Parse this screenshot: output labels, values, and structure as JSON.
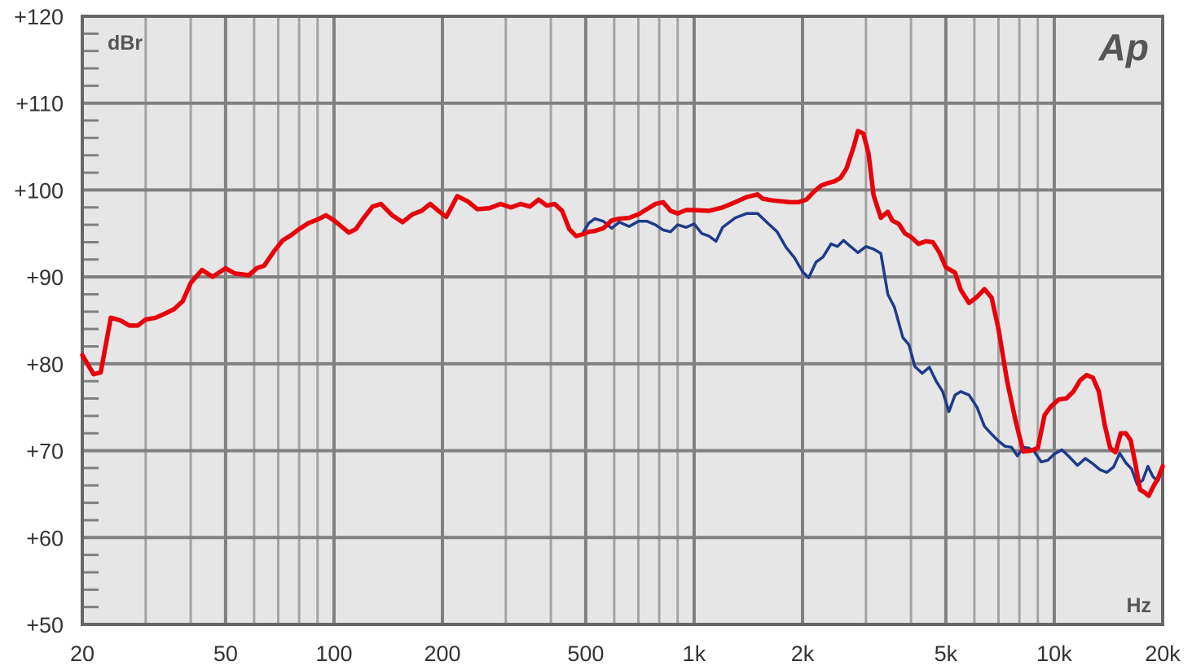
{
  "chart_data": {
    "type": "line",
    "title": "",
    "xlabel": "Hz",
    "ylabel": "dBr",
    "x_scale": "log",
    "xlim": [
      20,
      20000
    ],
    "ylim": [
      50,
      120
    ],
    "x_ticks": [
      {
        "value": 20,
        "label": "20"
      },
      {
        "value": 50,
        "label": "50"
      },
      {
        "value": 100,
        "label": "100"
      },
      {
        "value": 200,
        "label": "200"
      },
      {
        "value": 500,
        "label": "500"
      },
      {
        "value": 1000,
        "label": "1k"
      },
      {
        "value": 2000,
        "label": "2k"
      },
      {
        "value": 5000,
        "label": "5k"
      },
      {
        "value": 10000,
        "label": "10k"
      },
      {
        "value": 20000,
        "label": "20k"
      }
    ],
    "y_ticks": [
      {
        "value": 120,
        "label": "+120"
      },
      {
        "value": 110,
        "label": "+110"
      },
      {
        "value": 100,
        "label": "+100"
      },
      {
        "value": 90,
        "label": "+90"
      },
      {
        "value": 80,
        "label": "+80"
      },
      {
        "value": 70,
        "label": "+70"
      },
      {
        "value": 60,
        "label": "+60"
      },
      {
        "value": 50,
        "label": "+50"
      }
    ],
    "grid": true,
    "logo": "Ap",
    "series": [
      {
        "color": "#e8000b",
        "points": [
          [
            20,
            81
          ],
          [
            21.5,
            78.8
          ],
          [
            22.5,
            79
          ],
          [
            24,
            85.3
          ],
          [
            25.5,
            85
          ],
          [
            27,
            84.4
          ],
          [
            28.5,
            84.4
          ],
          [
            30,
            85.1
          ],
          [
            32,
            85.3
          ],
          [
            34,
            85.8
          ],
          [
            36,
            86.3
          ],
          [
            38,
            87.2
          ],
          [
            40,
            89.3
          ],
          [
            43,
            90.8
          ],
          [
            46,
            90
          ],
          [
            50,
            91
          ],
          [
            53,
            90.4
          ],
          [
            58,
            90.2
          ],
          [
            61,
            91
          ],
          [
            64,
            91.3
          ],
          [
            68,
            92.9
          ],
          [
            72,
            94.2
          ],
          [
            76,
            94.8
          ],
          [
            80,
            95.5
          ],
          [
            85,
            96.2
          ],
          [
            90,
            96.6
          ],
          [
            95,
            97.1
          ],
          [
            100,
            96.5
          ],
          [
            110,
            95.1
          ],
          [
            115,
            95.5
          ],
          [
            120,
            96.6
          ],
          [
            128,
            98.1
          ],
          [
            135,
            98.4
          ],
          [
            145,
            97.1
          ],
          [
            155,
            96.3
          ],
          [
            165,
            97.2
          ],
          [
            175,
            97.6
          ],
          [
            185,
            98.4
          ],
          [
            195,
            97.6
          ],
          [
            205,
            96.9
          ],
          [
            220,
            99.3
          ],
          [
            235,
            98.7
          ],
          [
            250,
            97.8
          ],
          [
            270,
            97.9
          ],
          [
            290,
            98.4
          ],
          [
            310,
            98
          ],
          [
            330,
            98.4
          ],
          [
            350,
            98.1
          ],
          [
            370,
            98.9
          ],
          [
            390,
            98.2
          ],
          [
            410,
            98.4
          ],
          [
            430,
            97.6
          ],
          [
            450,
            95.5
          ],
          [
            470,
            94.7
          ],
          [
            490,
            94.9
          ],
          [
            510,
            95.2
          ],
          [
            530,
            95.3
          ],
          [
            560,
            95.6
          ],
          [
            590,
            96.5
          ],
          [
            620,
            96.7
          ],
          [
            660,
            96.8
          ],
          [
            700,
            97.2
          ],
          [
            740,
            97.8
          ],
          [
            780,
            98.4
          ],
          [
            820,
            98.6
          ],
          [
            860,
            97.6
          ],
          [
            900,
            97.3
          ],
          [
            950,
            97.7
          ],
          [
            1000,
            97.7
          ],
          [
            1100,
            97.6
          ],
          [
            1200,
            98
          ],
          [
            1300,
            98.6
          ],
          [
            1400,
            99.2
          ],
          [
            1500,
            99.5
          ],
          [
            1550,
            99
          ],
          [
            1650,
            98.8
          ],
          [
            1750,
            98.7
          ],
          [
            1850,
            98.6
          ],
          [
            1950,
            98.6
          ],
          [
            2050,
            98.9
          ],
          [
            2150,
            99.8
          ],
          [
            2250,
            100.5
          ],
          [
            2350,
            100.8
          ],
          [
            2450,
            101
          ],
          [
            2550,
            101.4
          ],
          [
            2650,
            102.5
          ],
          [
            2780,
            105.1
          ],
          [
            2850,
            106.8
          ],
          [
            2950,
            106.5
          ],
          [
            3050,
            104.2
          ],
          [
            3150,
            99.4
          ],
          [
            3300,
            96.8
          ],
          [
            3450,
            97.5
          ],
          [
            3550,
            96.5
          ],
          [
            3700,
            96.1
          ],
          [
            3850,
            95
          ],
          [
            4000,
            94.6
          ],
          [
            4200,
            93.8
          ],
          [
            4400,
            94.1
          ],
          [
            4600,
            94
          ],
          [
            4800,
            92.8
          ],
          [
            5000,
            91.1
          ],
          [
            5300,
            90.5
          ],
          [
            5500,
            88.5
          ],
          [
            5800,
            87
          ],
          [
            6100,
            87.7
          ],
          [
            6400,
            88.6
          ],
          [
            6700,
            87.6
          ],
          [
            7000,
            84
          ],
          [
            7400,
            78
          ],
          [
            7800,
            73.5
          ],
          [
            8200,
            69.9
          ],
          [
            8600,
            70
          ],
          [
            9000,
            70.3
          ],
          [
            9400,
            74.1
          ],
          [
            9800,
            75.1
          ],
          [
            10300,
            75.9
          ],
          [
            10800,
            76
          ],
          [
            11300,
            76.8
          ],
          [
            11800,
            78.1
          ],
          [
            12300,
            78.7
          ],
          [
            12800,
            78.4
          ],
          [
            13300,
            76.8
          ],
          [
            13800,
            73
          ],
          [
            14300,
            70.3
          ],
          [
            14800,
            69.8
          ],
          [
            15300,
            72
          ],
          [
            15800,
            72
          ],
          [
            16300,
            71.2
          ],
          [
            16800,
            68.5
          ],
          [
            17300,
            65.5
          ],
          [
            17800,
            65.2
          ],
          [
            18300,
            64.8
          ],
          [
            18800,
            65.8
          ],
          [
            19400,
            66.8
          ],
          [
            20000,
            68.2
          ]
        ]
      },
      {
        "color": "#1e3a8a",
        "points": [
          [
            490,
            95
          ],
          [
            510,
            96.2
          ],
          [
            530,
            96.7
          ],
          [
            560,
            96.4
          ],
          [
            590,
            95.6
          ],
          [
            620,
            96.3
          ],
          [
            660,
            95.8
          ],
          [
            700,
            96.4
          ],
          [
            740,
            96.4
          ],
          [
            780,
            96
          ],
          [
            820,
            95.4
          ],
          [
            860,
            95.2
          ],
          [
            900,
            96
          ],
          [
            950,
            95.7
          ],
          [
            1000,
            96.1
          ],
          [
            1050,
            95
          ],
          [
            1100,
            94.7
          ],
          [
            1150,
            94.1
          ],
          [
            1200,
            95.7
          ],
          [
            1300,
            96.8
          ],
          [
            1400,
            97.3
          ],
          [
            1500,
            97.3
          ],
          [
            1600,
            96.2
          ],
          [
            1700,
            95.2
          ],
          [
            1800,
            93.4
          ],
          [
            1900,
            92.2
          ],
          [
            2000,
            90.6
          ],
          [
            2080,
            89.9
          ],
          [
            2180,
            91.7
          ],
          [
            2280,
            92.3
          ],
          [
            2400,
            93.8
          ],
          [
            2500,
            93.5
          ],
          [
            2600,
            94.2
          ],
          [
            2700,
            93.6
          ],
          [
            2850,
            92.8
          ],
          [
            3000,
            93.5
          ],
          [
            3150,
            93.2
          ],
          [
            3300,
            92.7
          ],
          [
            3450,
            88
          ],
          [
            3600,
            86.5
          ],
          [
            3800,
            83
          ],
          [
            3950,
            82.2
          ],
          [
            4100,
            79.7
          ],
          [
            4300,
            78.9
          ],
          [
            4500,
            79.6
          ],
          [
            4700,
            78
          ],
          [
            4900,
            76.8
          ],
          [
            5100,
            74.5
          ],
          [
            5300,
            76.4
          ],
          [
            5500,
            76.8
          ],
          [
            5800,
            76.4
          ],
          [
            6100,
            75
          ],
          [
            6400,
            72.8
          ],
          [
            6700,
            71.9
          ],
          [
            7000,
            71.1
          ],
          [
            7300,
            70.5
          ],
          [
            7600,
            70.4
          ],
          [
            7900,
            69.4
          ],
          [
            8200,
            70.4
          ],
          [
            8500,
            70.3
          ],
          [
            8800,
            69.9
          ],
          [
            9200,
            68.7
          ],
          [
            9600,
            68.9
          ],
          [
            10000,
            69.6
          ],
          [
            10500,
            70.1
          ],
          [
            11000,
            69.3
          ],
          [
            11600,
            68.3
          ],
          [
            12200,
            69.1
          ],
          [
            12800,
            68.5
          ],
          [
            13400,
            67.8
          ],
          [
            14000,
            67.5
          ],
          [
            14600,
            68.1
          ],
          [
            15200,
            69.7
          ],
          [
            15800,
            68.6
          ],
          [
            16400,
            67.9
          ],
          [
            17000,
            66.1
          ],
          [
            17600,
            66.6
          ],
          [
            18200,
            68.2
          ],
          [
            18800,
            67
          ],
          [
            19400,
            66.5
          ],
          [
            20000,
            67.9
          ]
        ]
      }
    ]
  }
}
